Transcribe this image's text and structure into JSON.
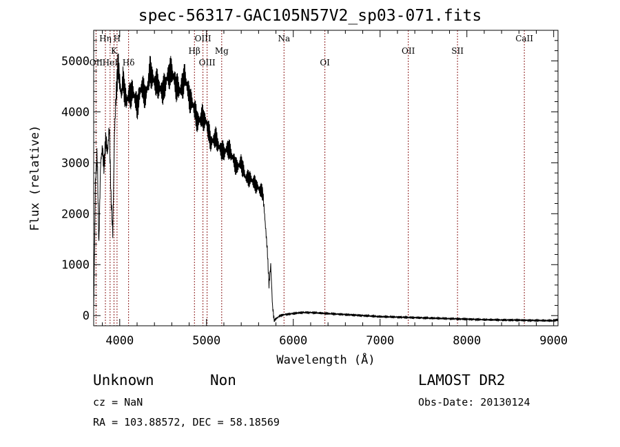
{
  "chart_data": {
    "type": "line",
    "title": "spec-56317-GAC105N57V2_sp03-071.fits",
    "xlabel": "Wavelength (Å)",
    "ylabel": "Flux (relative)",
    "xlim": [
      3700,
      9050
    ],
    "ylim": [
      -200,
      5600
    ],
    "xticks": [
      4000,
      5000,
      6000,
      7000,
      8000,
      9000
    ],
    "yticks": [
      0,
      1000,
      2000,
      3000,
      4000,
      5000
    ],
    "grid": false,
    "line_color": "#000000",
    "marker_color": "#8b1a1a",
    "series": [
      {
        "x": [
          3700,
          3720,
          3740,
          3760,
          3780,
          3800,
          3820,
          3840,
          3860,
          3880,
          3900,
          3920,
          3940,
          3960,
          3980,
          4000,
          4020,
          4040,
          4060,
          4080,
          4100,
          4150,
          4200,
          4250,
          4300,
          4350,
          4400,
          4450,
          4500,
          4550,
          4600,
          4650,
          4700,
          4750,
          4800,
          4850,
          4900,
          4950,
          5000,
          5050,
          5100,
          5150,
          5200,
          5250,
          5300,
          5350,
          5400,
          5450,
          5500,
          5550,
          5600,
          5650,
          5700,
          5720,
          5740,
          5760,
          5780,
          5800,
          5850,
          5900,
          6000,
          6100,
          6200,
          6300,
          6400,
          6500,
          6600,
          6700,
          6800,
          6900,
          7000,
          7200,
          7400,
          7600,
          7800,
          8000,
          8200,
          8400,
          8600,
          8800,
          9000,
          9050
        ],
        "y": [
          100,
          2600,
          3200,
          1400,
          3000,
          3300,
          2900,
          3500,
          3200,
          3700,
          2300,
          1600,
          3600,
          4400,
          4900,
          4600,
          4300,
          4700,
          4300,
          4200,
          4300,
          4400,
          4100,
          4500,
          4300,
          4800,
          4600,
          4500,
          4400,
          4700,
          4800,
          4500,
          4400,
          4700,
          4300,
          4100,
          3800,
          3900,
          3800,
          3400,
          3500,
          3300,
          3200,
          3300,
          3100,
          2900,
          3000,
          2700,
          2700,
          2600,
          2500,
          2400,
          1300,
          600,
          1000,
          200,
          -100,
          -60,
          0,
          20,
          40,
          60,
          60,
          50,
          40,
          30,
          20,
          10,
          0,
          -10,
          -20,
          -30,
          -40,
          -50,
          -60,
          -70,
          -80,
          -85,
          -90,
          -95,
          -100,
          -80
        ]
      }
    ],
    "line_markers": [
      {
        "label": "Hη",
        "wavelength": 3835,
        "row": 1
      },
      {
        "label": "H",
        "wavelength": 3969,
        "row": 1
      },
      {
        "label": "K",
        "wavelength": 3934,
        "row": 2
      },
      {
        "label": "OII",
        "wavelength": 3727,
        "row": 3
      },
      {
        "label": "HeI",
        "wavelength": 3889,
        "row": 3
      },
      {
        "label": "Hδ",
        "wavelength": 4102,
        "row": 3
      },
      {
        "label": "OIII",
        "wavelength": 4959,
        "row": 1
      },
      {
        "label": "Hβ",
        "wavelength": 4861,
        "row": 2
      },
      {
        "label": "OIII",
        "wavelength": 5007,
        "row": 3
      },
      {
        "label": "Mg",
        "wavelength": 5175,
        "row": 2
      },
      {
        "label": "Na",
        "wavelength": 5893,
        "row": 1
      },
      {
        "label": "OI",
        "wavelength": 6364,
        "row": 3
      },
      {
        "label": "OII",
        "wavelength": 7325,
        "row": 2
      },
      {
        "label": "SII",
        "wavelength": 7892,
        "row": 2
      },
      {
        "label": "CaII",
        "wavelength": 8662,
        "row": 1
      }
    ]
  },
  "info": {
    "class": "Unknown",
    "subclass": "Non",
    "survey": "LAMOST DR2",
    "cz": "cz = NaN",
    "obs_date": "Obs-Date: 20130124",
    "coords": "RA = 103.88572, DEC =  58.18569"
  }
}
